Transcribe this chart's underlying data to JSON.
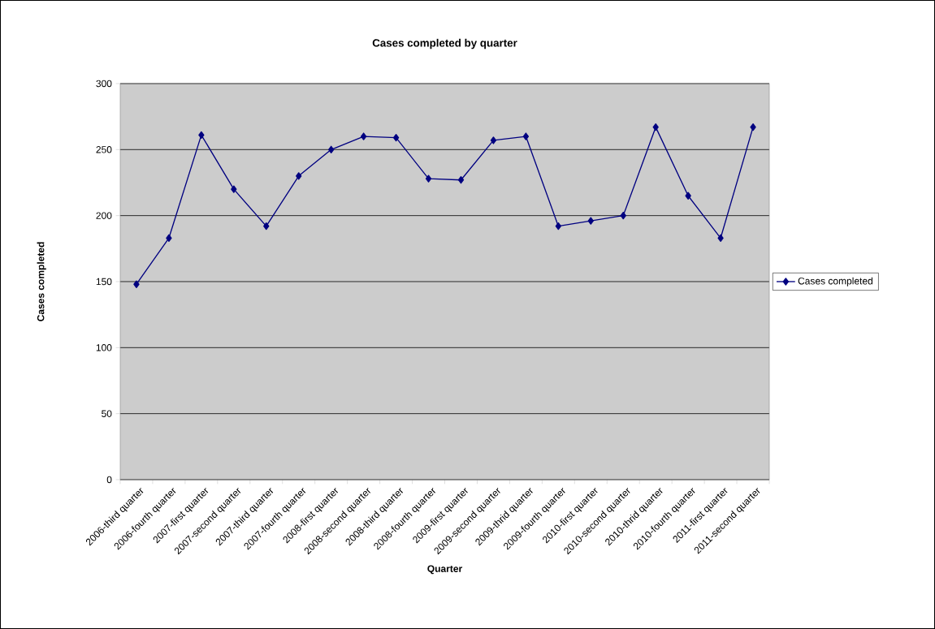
{
  "chart_data": {
    "type": "line",
    "title": "Cases completed by quarter",
    "xlabel": "Quarter",
    "ylabel": "Cases completed",
    "categories": [
      "2006-third quarter",
      "2006-fourth quarter",
      "2007-first quarter",
      "2007-second quarter",
      "2007-third quarter",
      "2007-fourth quarter",
      "2008-first quarter",
      "2008-second quarter",
      "2008-third quarter",
      "2008-fourth quarter",
      "2009-first quarter",
      "2009-second quarter",
      "2009-thrid quarter",
      "2009-fourth quarter",
      "2010-first quarter",
      "2010-second quarter",
      "2010-thrid quarter",
      "2010-fourth quarter",
      "2011-first quarter",
      "2011-second quarter"
    ],
    "series": [
      {
        "name": "Cases completed",
        "color": "#000080",
        "values": [
          148,
          183,
          261,
          220,
          192,
          230,
          250,
          260,
          259,
          228,
          227,
          257,
          260,
          192,
          196,
          200,
          267,
          215,
          183,
          267
        ]
      }
    ],
    "ylim": [
      0,
      300
    ],
    "yticks": [
      0,
      50,
      100,
      150,
      200,
      250,
      300
    ],
    "grid": "y",
    "legend": "right",
    "marker": "diamond"
  }
}
